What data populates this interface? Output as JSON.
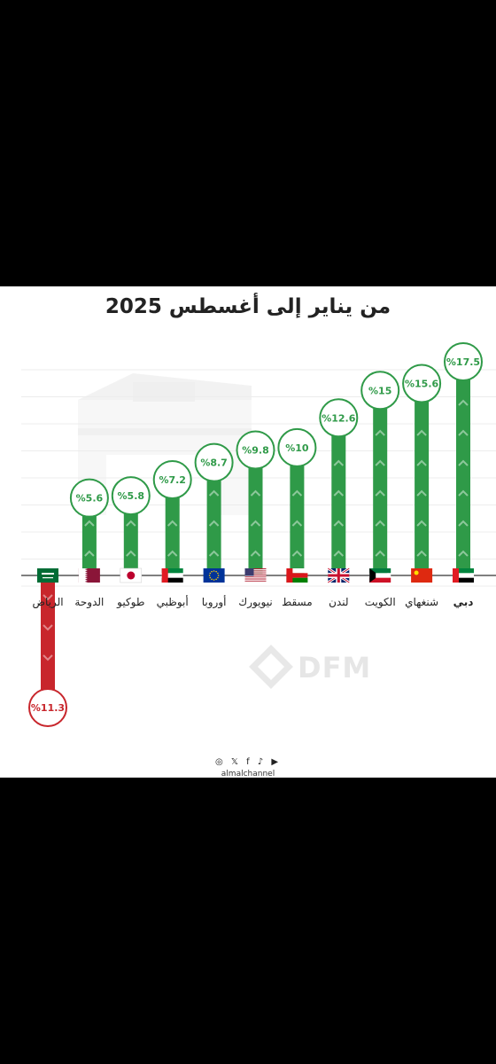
{
  "chart_data": {
    "type": "bar",
    "title": "من يناير إلى أغسطس 2025",
    "categories": [
      "دبي",
      "شنغهاي",
      "الكويت",
      "لندن",
      "مسقط",
      "نيويورك",
      "أوروبا",
      "أبوظبي",
      "طوكيو",
      "الدوحة",
      "الرياض"
    ],
    "values": [
      17.5,
      15.6,
      15,
      12.6,
      10,
      9.8,
      8.7,
      7.2,
      5.8,
      5.6,
      -11.3
    ],
    "value_labels": [
      "%17.5",
      "%15.6",
      "%15",
      "%12.6",
      "%10",
      "%9.8",
      "%8.7",
      "%7.2",
      "%5.8",
      "%5.6",
      "%11.3"
    ],
    "flags": [
      "uae-flag",
      "china-flag",
      "kuwait-flag",
      "uk-flag",
      "oman-flag",
      "usa-flag",
      "eu-flag",
      "uae-flag",
      "japan-flag",
      "qatar-flag",
      "saudi-flag"
    ],
    "xlabel": "",
    "ylabel": "",
    "ylim": [
      -11.3,
      17.5
    ],
    "grid": true,
    "colors": {
      "positive": "#2f9a48",
      "negative": "#c8262c"
    }
  },
  "footer": {
    "social_icons": [
      "instagram-icon",
      "x-icon",
      "facebook-icon",
      "tiktok-icon",
      "youtube-icon"
    ],
    "social_glyphs": "◎ 𝕏 f ♪ ▶",
    "handle": "almalchannel"
  },
  "watermark": {
    "text": "DFM"
  }
}
